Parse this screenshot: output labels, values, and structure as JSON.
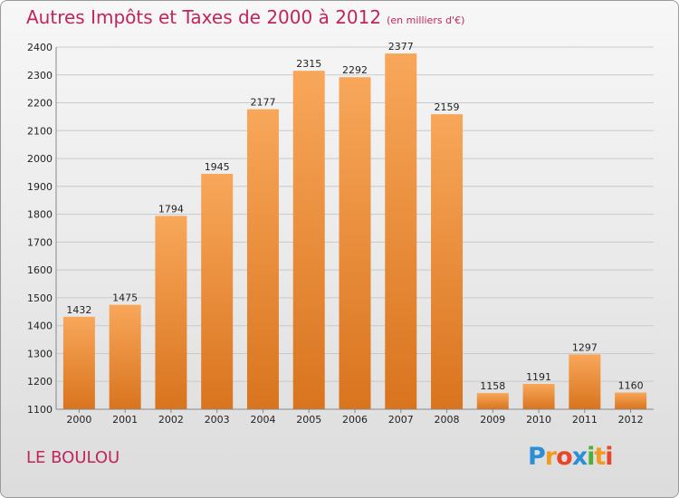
{
  "title": "Autres Impôts et Taxes de 2000 à 2012",
  "subtitle": "(en milliers d'€)",
  "commune": "LE BOULOU",
  "logo": {
    "text": "Proxiti",
    "letters": [
      "P",
      "r",
      "o",
      "x",
      "i",
      "t",
      "i"
    ],
    "colors": [
      "#2a8fd6",
      "#f29b21",
      "#e8452c",
      "#2a8fd6",
      "#4caf3c",
      "#f29b21",
      "#e8452c"
    ]
  },
  "colors": {
    "bar_top": "#f8a75a",
    "bar_bottom": "#d9741e",
    "title": "#c2245d",
    "grid": "#c9c9c9"
  },
  "chart_data": {
    "type": "bar",
    "title": "Autres Impôts et Taxes de 2000 à 2012",
    "subtitle": "(en milliers d'€)",
    "categories": [
      "2000",
      "2001",
      "2002",
      "2003",
      "2004",
      "2005",
      "2006",
      "2007",
      "2008",
      "2009",
      "2010",
      "2011",
      "2012"
    ],
    "values": [
      1432,
      1475,
      1794,
      1945,
      2177,
      2315,
      2292,
      2377,
      2159,
      1158,
      1191,
      1297,
      1160
    ],
    "ylim": [
      1100,
      2400
    ],
    "yticks": [
      1100,
      1200,
      1300,
      1400,
      1500,
      1600,
      1700,
      1800,
      1900,
      2000,
      2100,
      2200,
      2300,
      2400
    ],
    "grid": true,
    "xlabel": "",
    "ylabel": ""
  }
}
